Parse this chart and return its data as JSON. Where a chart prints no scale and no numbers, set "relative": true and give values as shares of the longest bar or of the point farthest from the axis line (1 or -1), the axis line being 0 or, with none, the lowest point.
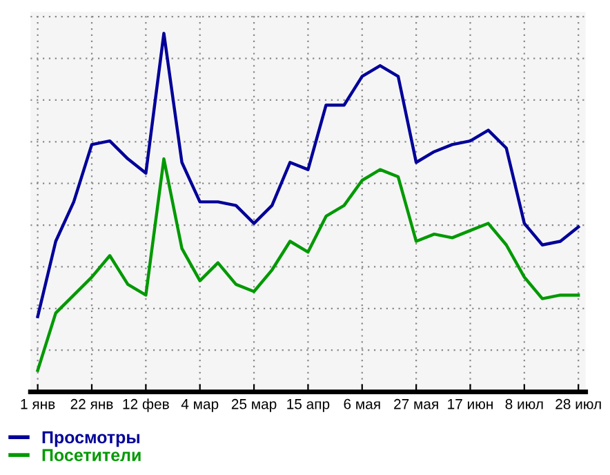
{
  "chart_data": {
    "type": "line",
    "relative": true,
    "categories": [
      "1 янв",
      null,
      null,
      "22 янв",
      null,
      null,
      "12 фев",
      null,
      null,
      "4 мар",
      null,
      null,
      "25 мар",
      null,
      null,
      "15 апр",
      null,
      null,
      "6 мая",
      null,
      null,
      "27 мая",
      null,
      null,
      "17 июн",
      null,
      null,
      "8 июл",
      null,
      null,
      "28 июл"
    ],
    "series": [
      {
        "name": "Просмотры",
        "color": "#000099",
        "values": [
          0.21,
          0.42,
          0.53,
          0.69,
          0.7,
          0.65,
          0.61,
          1,
          0.64,
          0.53,
          0.53,
          0.52,
          0.47,
          0.52,
          0.64,
          0.62,
          0.8,
          0.8,
          0.88,
          0.91,
          0.88,
          0.64,
          0.67,
          0.69,
          0.7,
          0.73,
          0.68,
          0.47,
          0.41,
          0.42,
          0.46
        ]
      },
      {
        "name": "Посетители",
        "color": "#009900",
        "values": [
          0.06,
          0.22,
          0.27,
          0.32,
          0.38,
          0.3,
          0.27,
          0.65,
          0.4,
          0.31,
          0.36,
          0.3,
          0.28,
          0.34,
          0.42,
          0.39,
          0.49,
          0.52,
          0.59,
          0.62,
          0.6,
          0.42,
          0.44,
          0.43,
          0.45,
          0.47,
          0.41,
          0.32,
          0.26,
          0.27,
          0.27
        ]
      }
    ],
    "grid": true,
    "legend": "bottom left",
    "marker": "none",
    "line_style": "solid"
  }
}
